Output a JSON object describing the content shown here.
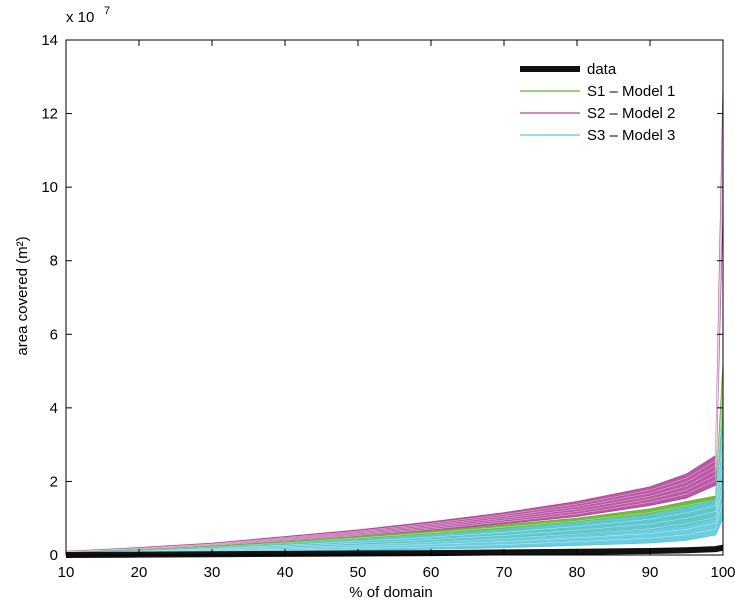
{
  "chart_data": {
    "type": "line",
    "title": "",
    "xlabel": "% of domain",
    "ylabel": "area covered (m²)",
    "y_multiplier_label": "x 10",
    "y_multiplier_exp": "7",
    "xlim": [
      10,
      100
    ],
    "ylim": [
      0,
      14
    ],
    "xticks": [
      10,
      20,
      30,
      40,
      50,
      60,
      70,
      80,
      90,
      100
    ],
    "yticks": [
      0,
      2,
      4,
      6,
      8,
      10,
      12,
      14
    ],
    "grid": false,
    "legend_position": "top-right",
    "x": [
      10,
      20,
      30,
      40,
      50,
      60,
      70,
      80,
      90,
      95,
      99,
      100
    ],
    "series": [
      {
        "name": "S2 – Model 2",
        "color": "#b4479b",
        "band": true,
        "lower": [
          0.06,
          0.12,
          0.22,
          0.35,
          0.5,
          0.66,
          0.85,
          1.05,
          1.35,
          1.55,
          1.9,
          9.5
        ],
        "upper": [
          0.1,
          0.2,
          0.32,
          0.5,
          0.68,
          0.9,
          1.15,
          1.45,
          1.85,
          2.2,
          2.7,
          12.7
        ]
      },
      {
        "name": "S1 – Model 1",
        "color": "#63b531",
        "band": true,
        "lower": [
          0.03,
          0.08,
          0.13,
          0.2,
          0.28,
          0.36,
          0.45,
          0.55,
          0.7,
          0.8,
          1.0,
          3.0
        ],
        "upper": [
          0.06,
          0.14,
          0.24,
          0.36,
          0.5,
          0.65,
          0.82,
          1.0,
          1.25,
          1.45,
          1.6,
          5.2
        ]
      },
      {
        "name": "S3 – Model 3",
        "color": "#5bc8da",
        "band": true,
        "lower": [
          0.01,
          0.03,
          0.06,
          0.09,
          0.12,
          0.16,
          0.2,
          0.26,
          0.33,
          0.4,
          0.55,
          1.0
        ],
        "upper": [
          0.05,
          0.12,
          0.2,
          0.3,
          0.42,
          0.55,
          0.7,
          0.88,
          1.1,
          1.3,
          1.5,
          3.8
        ]
      },
      {
        "name": "data",
        "color": "#111111",
        "band": false,
        "values": [
          0.0,
          0.01,
          0.02,
          0.03,
          0.04,
          0.05,
          0.07,
          0.09,
          0.11,
          0.13,
          0.16,
          0.2
        ]
      }
    ],
    "legend_order": [
      "data",
      "S1 – Model 1",
      "S2 – Model 2",
      "S3 – Model 3"
    ]
  }
}
